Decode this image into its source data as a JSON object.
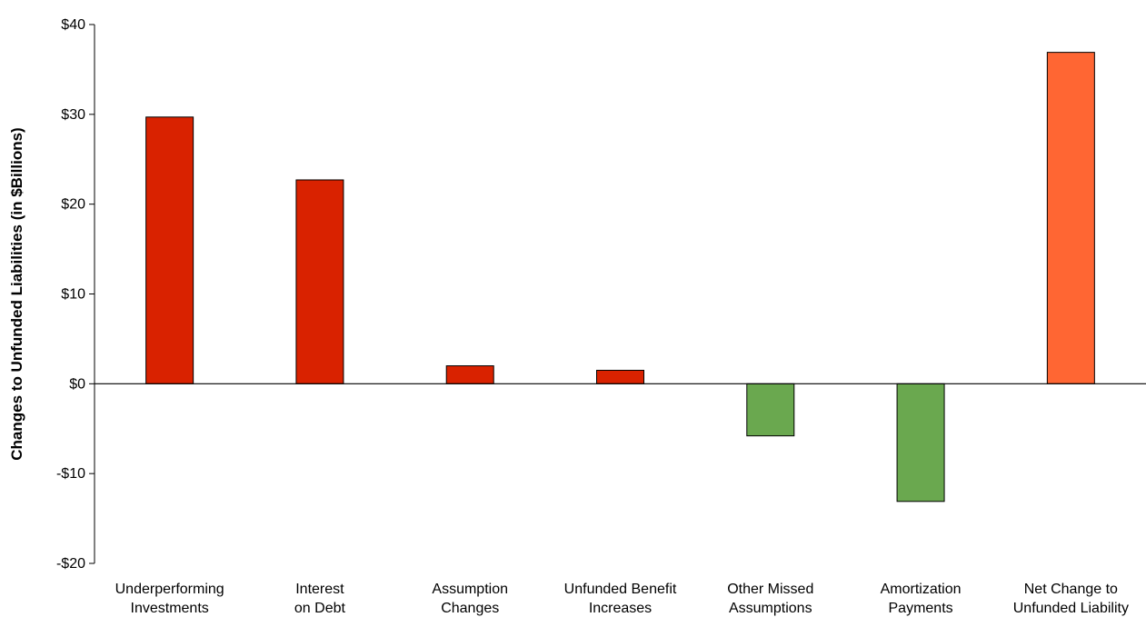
{
  "chart_data": {
    "type": "bar",
    "title": "",
    "xlabel": "",
    "ylabel": "Changes to Unfunded Liabilities (in $Billions)",
    "ylim": [
      -20,
      40
    ],
    "yticks": [
      40,
      30,
      20,
      10,
      0,
      -10,
      -20
    ],
    "ytick_labels": [
      "$40",
      "$30",
      "$20",
      "$10",
      "$0",
      "-$10",
      "-$20"
    ],
    "categories": [
      [
        "Underperforming",
        "Investments"
      ],
      [
        "Interest",
        "on Debt"
      ],
      [
        "Assumption",
        "Changes"
      ],
      [
        "Unfunded Benefit",
        "Increases"
      ],
      [
        "Other Missed",
        "Assumptions"
      ],
      [
        "Amortization",
        "Payments"
      ],
      [
        "Net Change to",
        "Unfunded Liability"
      ]
    ],
    "values": [
      29.7,
      22.7,
      2.0,
      1.5,
      -5.8,
      -13.1,
      36.9
    ],
    "colors": [
      "#d92200",
      "#d92200",
      "#d92200",
      "#d92200",
      "#6aa84f",
      "#6aa84f",
      "#ff6633"
    ],
    "grid": false,
    "legend": "none"
  }
}
